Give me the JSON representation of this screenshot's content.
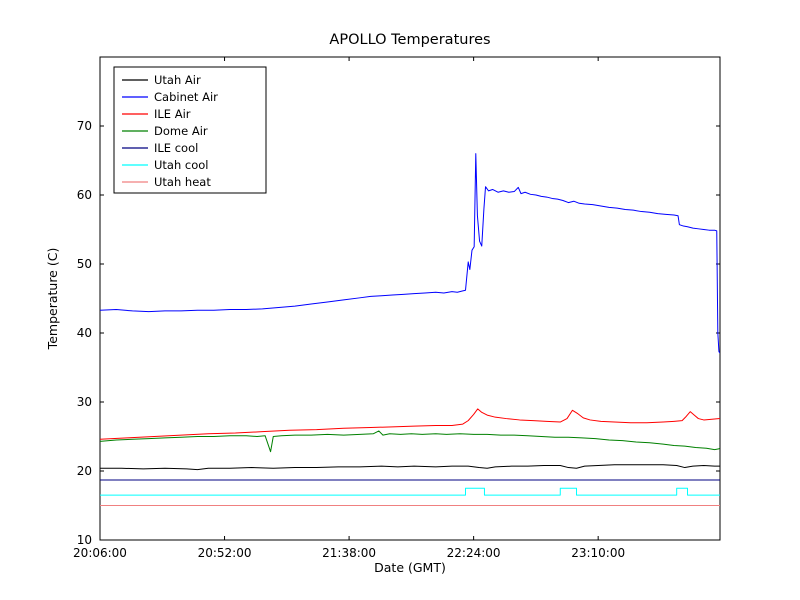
{
  "page": {
    "background": "#ffffff",
    "frame_color": "#000000"
  },
  "chart_data": {
    "type": "line",
    "title": "APOLLO Temperatures",
    "xlabel": "Date (GMT)",
    "ylabel": "Temperature (C)",
    "grid": false,
    "legend_position": "upper left",
    "x_axis": {
      "tick_labels": [
        "20:06:00",
        "20:52:00",
        "21:38:00",
        "22:24:00",
        "23:10:00"
      ],
      "tick_minutes": [
        0,
        46,
        92,
        138,
        184
      ],
      "range_minutes": [
        0,
        229
      ]
    },
    "y_axis": {
      "ticks": [
        10,
        20,
        30,
        40,
        50,
        60,
        70
      ],
      "lim": [
        10,
        80
      ]
    },
    "series": [
      {
        "name": "Utah Air",
        "color": "#000000",
        "points": [
          [
            0,
            20.4
          ],
          [
            8,
            20.4
          ],
          [
            16,
            20.3
          ],
          [
            24,
            20.4
          ],
          [
            32,
            20.3
          ],
          [
            36,
            20.2
          ],
          [
            40,
            20.4
          ],
          [
            48,
            20.4
          ],
          [
            56,
            20.5
          ],
          [
            64,
            20.4
          ],
          [
            72,
            20.5
          ],
          [
            80,
            20.5
          ],
          [
            88,
            20.6
          ],
          [
            96,
            20.6
          ],
          [
            104,
            20.7
          ],
          [
            110,
            20.6
          ],
          [
            116,
            20.7
          ],
          [
            124,
            20.6
          ],
          [
            130,
            20.7
          ],
          [
            136,
            20.7
          ],
          [
            140,
            20.5
          ],
          [
            143,
            20.4
          ],
          [
            146,
            20.6
          ],
          [
            152,
            20.7
          ],
          [
            158,
            20.7
          ],
          [
            164,
            20.8
          ],
          [
            170,
            20.8
          ],
          [
            173,
            20.5
          ],
          [
            176,
            20.4
          ],
          [
            179,
            20.7
          ],
          [
            184,
            20.8
          ],
          [
            190,
            20.9
          ],
          [
            196,
            20.9
          ],
          [
            202,
            20.9
          ],
          [
            208,
            20.9
          ],
          [
            213,
            20.8
          ],
          [
            216,
            20.5
          ],
          [
            219,
            20.7
          ],
          [
            223,
            20.8
          ],
          [
            227,
            20.7
          ],
          [
            229,
            20.7
          ]
        ]
      },
      {
        "name": "Cabinet Air",
        "color": "#0000ff",
        "points": [
          [
            0,
            43.3
          ],
          [
            6,
            43.4
          ],
          [
            12,
            43.2
          ],
          [
            18,
            43.1
          ],
          [
            24,
            43.2
          ],
          [
            30,
            43.2
          ],
          [
            36,
            43.3
          ],
          [
            42,
            43.3
          ],
          [
            48,
            43.4
          ],
          [
            54,
            43.4
          ],
          [
            60,
            43.5
          ],
          [
            66,
            43.7
          ],
          [
            72,
            43.9
          ],
          [
            78,
            44.2
          ],
          [
            84,
            44.5
          ],
          [
            90,
            44.8
          ],
          [
            96,
            45.1
          ],
          [
            100,
            45.3
          ],
          [
            104,
            45.4
          ],
          [
            108,
            45.5
          ],
          [
            112,
            45.6
          ],
          [
            116,
            45.7
          ],
          [
            120,
            45.8
          ],
          [
            124,
            45.9
          ],
          [
            127,
            45.8
          ],
          [
            130,
            46.0
          ],
          [
            132,
            45.9
          ],
          [
            134,
            46.1
          ],
          [
            135,
            46.2
          ],
          [
            136,
            50.3
          ],
          [
            136.6,
            49.2
          ],
          [
            137.4,
            52.0
          ],
          [
            138.2,
            52.5
          ],
          [
            138.8,
            66.0
          ],
          [
            139.4,
            57.0
          ],
          [
            140.2,
            53.3
          ],
          [
            141,
            52.6
          ],
          [
            141.8,
            58.0
          ],
          [
            142.4,
            61.2
          ],
          [
            143.5,
            60.6
          ],
          [
            145,
            60.8
          ],
          [
            147,
            60.4
          ],
          [
            149,
            60.6
          ],
          [
            151,
            60.4
          ],
          [
            153,
            60.5
          ],
          [
            154.5,
            61.1
          ],
          [
            155.5,
            60.2
          ],
          [
            157,
            60.4
          ],
          [
            159,
            60.1
          ],
          [
            161,
            60.0
          ],
          [
            163,
            59.8
          ],
          [
            165,
            59.7
          ],
          [
            167,
            59.5
          ],
          [
            169,
            59.4
          ],
          [
            171,
            59.2
          ],
          [
            173,
            58.9
          ],
          [
            175,
            59.1
          ],
          [
            177,
            58.8
          ],
          [
            179,
            58.7
          ],
          [
            182,
            58.6
          ],
          [
            185,
            58.4
          ],
          [
            188,
            58.2
          ],
          [
            191,
            58.1
          ],
          [
            194,
            57.9
          ],
          [
            197,
            57.8
          ],
          [
            200,
            57.6
          ],
          [
            203,
            57.5
          ],
          [
            206,
            57.3
          ],
          [
            209,
            57.2
          ],
          [
            212,
            57.1
          ],
          [
            213.5,
            57.0
          ],
          [
            214,
            55.7
          ],
          [
            215.5,
            55.5
          ],
          [
            217,
            55.4
          ],
          [
            219,
            55.2
          ],
          [
            221,
            55.1
          ],
          [
            223,
            55.0
          ],
          [
            225,
            54.9
          ],
          [
            227,
            54.9
          ],
          [
            227.8,
            54.8
          ],
          [
            228.2,
            40.0
          ],
          [
            228.6,
            37.3
          ],
          [
            229,
            37.1
          ]
        ]
      },
      {
        "name": "ILE Air",
        "color": "#ff0000",
        "points": [
          [
            0,
            24.6
          ],
          [
            10,
            24.8
          ],
          [
            20,
            25.0
          ],
          [
            30,
            25.2
          ],
          [
            40,
            25.4
          ],
          [
            50,
            25.5
          ],
          [
            60,
            25.7
          ],
          [
            70,
            25.9
          ],
          [
            80,
            26.0
          ],
          [
            90,
            26.2
          ],
          [
            100,
            26.3
          ],
          [
            108,
            26.4
          ],
          [
            116,
            26.5
          ],
          [
            124,
            26.6
          ],
          [
            130,
            26.6
          ],
          [
            134,
            26.8
          ],
          [
            136,
            27.3
          ],
          [
            138,
            28.2
          ],
          [
            139.5,
            29.0
          ],
          [
            141,
            28.5
          ],
          [
            143,
            28.1
          ],
          [
            146,
            27.8
          ],
          [
            150,
            27.6
          ],
          [
            155,
            27.4
          ],
          [
            160,
            27.3
          ],
          [
            165,
            27.2
          ],
          [
            170,
            27.1
          ],
          [
            172.5,
            27.6
          ],
          [
            174.5,
            28.8
          ],
          [
            176.5,
            28.3
          ],
          [
            178.5,
            27.7
          ],
          [
            181,
            27.4
          ],
          [
            185,
            27.2
          ],
          [
            190,
            27.1
          ],
          [
            196,
            27.0
          ],
          [
            202,
            27.0
          ],
          [
            208,
            27.1
          ],
          [
            212,
            27.2
          ],
          [
            215,
            27.3
          ],
          [
            216.5,
            27.9
          ],
          [
            218,
            28.6
          ],
          [
            219.5,
            28.1
          ],
          [
            221,
            27.6
          ],
          [
            223,
            27.4
          ],
          [
            226,
            27.5
          ],
          [
            229,
            27.6
          ]
        ]
      },
      {
        "name": "Dome Air",
        "color": "#008000",
        "points": [
          [
            0,
            24.3
          ],
          [
            6,
            24.5
          ],
          [
            12,
            24.6
          ],
          [
            18,
            24.7
          ],
          [
            24,
            24.8
          ],
          [
            30,
            24.9
          ],
          [
            36,
            25.0
          ],
          [
            42,
            25.0
          ],
          [
            48,
            25.1
          ],
          [
            54,
            25.1
          ],
          [
            58,
            25.0
          ],
          [
            61,
            25.1
          ],
          [
            63,
            22.8
          ],
          [
            64,
            25.0
          ],
          [
            67,
            25.1
          ],
          [
            72,
            25.2
          ],
          [
            78,
            25.2
          ],
          [
            84,
            25.3
          ],
          [
            90,
            25.2
          ],
          [
            96,
            25.3
          ],
          [
            101,
            25.4
          ],
          [
            103,
            25.8
          ],
          [
            104.5,
            25.2
          ],
          [
            107,
            25.4
          ],
          [
            111,
            25.3
          ],
          [
            115,
            25.4
          ],
          [
            119,
            25.3
          ],
          [
            124,
            25.4
          ],
          [
            128,
            25.3
          ],
          [
            133,
            25.4
          ],
          [
            138,
            25.3
          ],
          [
            143,
            25.3
          ],
          [
            148,
            25.2
          ],
          [
            153,
            25.2
          ],
          [
            158,
            25.1
          ],
          [
            163,
            25.0
          ],
          [
            168,
            24.9
          ],
          [
            173,
            24.9
          ],
          [
            178,
            24.8
          ],
          [
            183,
            24.7
          ],
          [
            188,
            24.5
          ],
          [
            193,
            24.4
          ],
          [
            198,
            24.2
          ],
          [
            203,
            24.1
          ],
          [
            208,
            23.9
          ],
          [
            212,
            23.7
          ],
          [
            216,
            23.6
          ],
          [
            220,
            23.4
          ],
          [
            224,
            23.3
          ],
          [
            227,
            23.1
          ],
          [
            228.5,
            23.2
          ],
          [
            229,
            23.3
          ]
        ]
      },
      {
        "name": "ILE cool",
        "color": "#000080",
        "points": [
          [
            0,
            18.7
          ],
          [
            229,
            18.7
          ]
        ]
      },
      {
        "name": "Utah cool",
        "color": "#00ffff",
        "points": [
          [
            0,
            16.5
          ],
          [
            135,
            16.5
          ],
          [
            135,
            17.5
          ],
          [
            142,
            17.5
          ],
          [
            142,
            16.5
          ],
          [
            170,
            16.5
          ],
          [
            170,
            17.5
          ],
          [
            176,
            17.5
          ],
          [
            176,
            16.5
          ],
          [
            213,
            16.5
          ],
          [
            213,
            17.5
          ],
          [
            217,
            17.5
          ],
          [
            217,
            16.5
          ],
          [
            229,
            16.5
          ]
        ]
      },
      {
        "name": "Utah heat",
        "color": "#f08080",
        "points": [
          [
            0,
            15.0
          ],
          [
            229,
            15.0
          ]
        ]
      }
    ]
  }
}
